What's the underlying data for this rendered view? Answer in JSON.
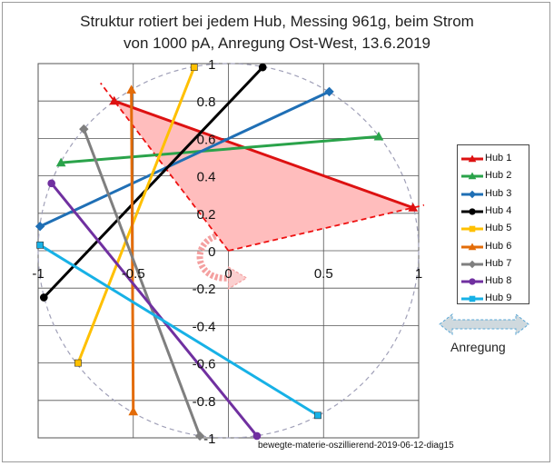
{
  "title_line1": "Struktur rotiert bei jedem Hub, Messing 961g, beim Strom",
  "title_line2": "von  1000 pA, Anregung Ost-West, 13.6.2019",
  "footer": "bewegte-materie-oszillierend-2019-06-12-diag15",
  "excitation": {
    "label": "Anregung"
  },
  "colors": {
    "triangle_fill": "#ffbdbd",
    "triangle_dash": "#ee1111",
    "circle": "#a0a0b8",
    "grid": "#555555",
    "arrow": "#cfd9de",
    "curl_arrow": "#f4a0a0"
  },
  "chart_data": {
    "type": "line",
    "xlim": [
      -1,
      1
    ],
    "ylim": [
      -1,
      1
    ],
    "x_ticks": [
      "-1",
      "-0.5",
      "0",
      "0.5",
      "1"
    ],
    "x_tick_values": [
      -1,
      -0.5,
      0,
      0.5,
      1
    ],
    "y_ticks": [
      "1",
      "0.8",
      "0.6",
      "0.4",
      "0.2",
      "0",
      "-0.2",
      "-0.4",
      "-0.6",
      "-0.8",
      "-1"
    ],
    "y_tick_values": [
      1,
      0.8,
      0.6,
      0.4,
      0.2,
      0,
      -0.2,
      -0.4,
      -0.6,
      -0.8,
      -1
    ],
    "grid": true,
    "legend_position": "right",
    "unit_circle": true,
    "triangle": [
      [
        -0.6,
        0.8
      ],
      [
        0.97,
        0.23
      ],
      [
        0,
        0
      ]
    ],
    "series": [
      {
        "name": "Hub 1",
        "color": "#dd1111",
        "marker": "triangle",
        "points": [
          [
            -0.6,
            0.8
          ],
          [
            0.97,
            0.23
          ]
        ]
      },
      {
        "name": "Hub 2",
        "color": "#2aa34a",
        "marker": "triangle",
        "points": [
          [
            -0.88,
            0.47
          ],
          [
            0.79,
            0.61
          ]
        ]
      },
      {
        "name": "Hub 3",
        "color": "#1f6fb5",
        "marker": "diamond",
        "points": [
          [
            -0.99,
            0.13
          ],
          [
            0.53,
            0.85
          ]
        ]
      },
      {
        "name": "Hub 4",
        "color": "#000000",
        "marker": "circle",
        "points": [
          [
            -0.97,
            -0.25
          ],
          [
            0.18,
            0.98
          ]
        ]
      },
      {
        "name": "Hub 5",
        "color": "#ffc000",
        "marker": "square",
        "points": [
          [
            -0.79,
            -0.6
          ],
          [
            -0.18,
            0.98
          ]
        ]
      },
      {
        "name": "Hub 6",
        "color": "#e36c09",
        "marker": "triangle",
        "points": [
          [
            -0.51,
            0.86
          ],
          [
            -0.5,
            -0.86
          ]
        ]
      },
      {
        "name": "Hub 7",
        "color": "#7f7f7f",
        "marker": "diamond",
        "points": [
          [
            -0.76,
            0.65
          ],
          [
            -0.15,
            -0.99
          ]
        ]
      },
      {
        "name": "Hub 8",
        "color": "#7030a0",
        "marker": "circle",
        "points": [
          [
            -0.93,
            0.36
          ],
          [
            0.15,
            -0.99
          ]
        ]
      },
      {
        "name": "Hub 9",
        "color": "#17b1e6",
        "marker": "square",
        "points": [
          [
            -0.99,
            0.03
          ],
          [
            0.47,
            -0.88
          ]
        ]
      }
    ]
  }
}
